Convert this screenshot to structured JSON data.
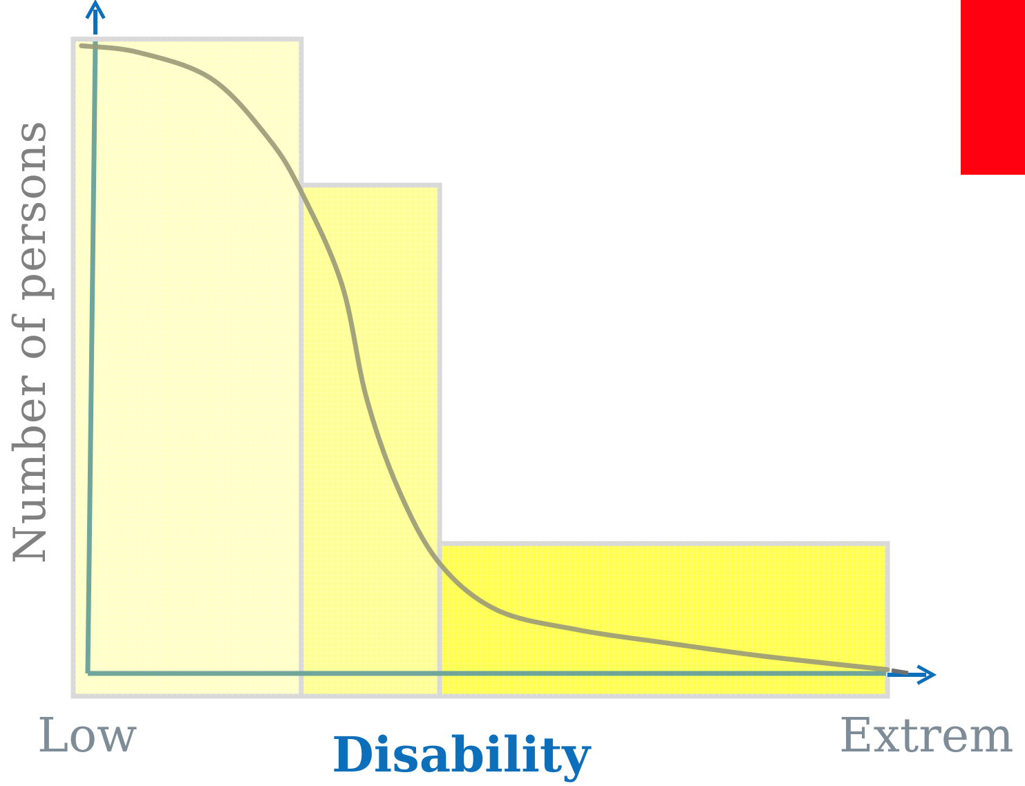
{
  "labels": {
    "y_axis": "Number of persons",
    "x_axis": "Disability",
    "x_low": "Low",
    "x_high": "Extrem"
  },
  "colors": {
    "bar_light": "#ffffc8",
    "bar_mid": "#ffff96",
    "bar_strong": "#ffff50",
    "bar_border": "#d9d9d9",
    "curve": "#9a9a78",
    "axis_line": "#6fa59a",
    "arrow": "#0d6fba",
    "swatch": "#ff0010"
  },
  "chart_data": {
    "type": "bar",
    "bars": [
      {
        "range": [
          0,
          0.28
        ],
        "value": 0.99
      },
      {
        "range": [
          0.28,
          0.45
        ],
        "value": 0.77
      },
      {
        "range": [
          0.45,
          1.0
        ],
        "value": 0.23
      }
    ],
    "curve": [
      [
        0.01,
        0.98
      ],
      [
        0.08,
        0.97
      ],
      [
        0.17,
        0.93
      ],
      [
        0.24,
        0.84
      ],
      [
        0.28,
        0.76
      ],
      [
        0.33,
        0.62
      ],
      [
        0.36,
        0.45
      ],
      [
        0.4,
        0.31
      ],
      [
        0.45,
        0.2
      ],
      [
        0.52,
        0.13
      ],
      [
        0.62,
        0.1
      ],
      [
        0.73,
        0.08
      ],
      [
        0.85,
        0.06
      ],
      [
        1.0,
        0.04
      ]
    ],
    "x_range": [
      0,
      1
    ],
    "y_range": [
      0,
      1
    ],
    "grid": false
  }
}
